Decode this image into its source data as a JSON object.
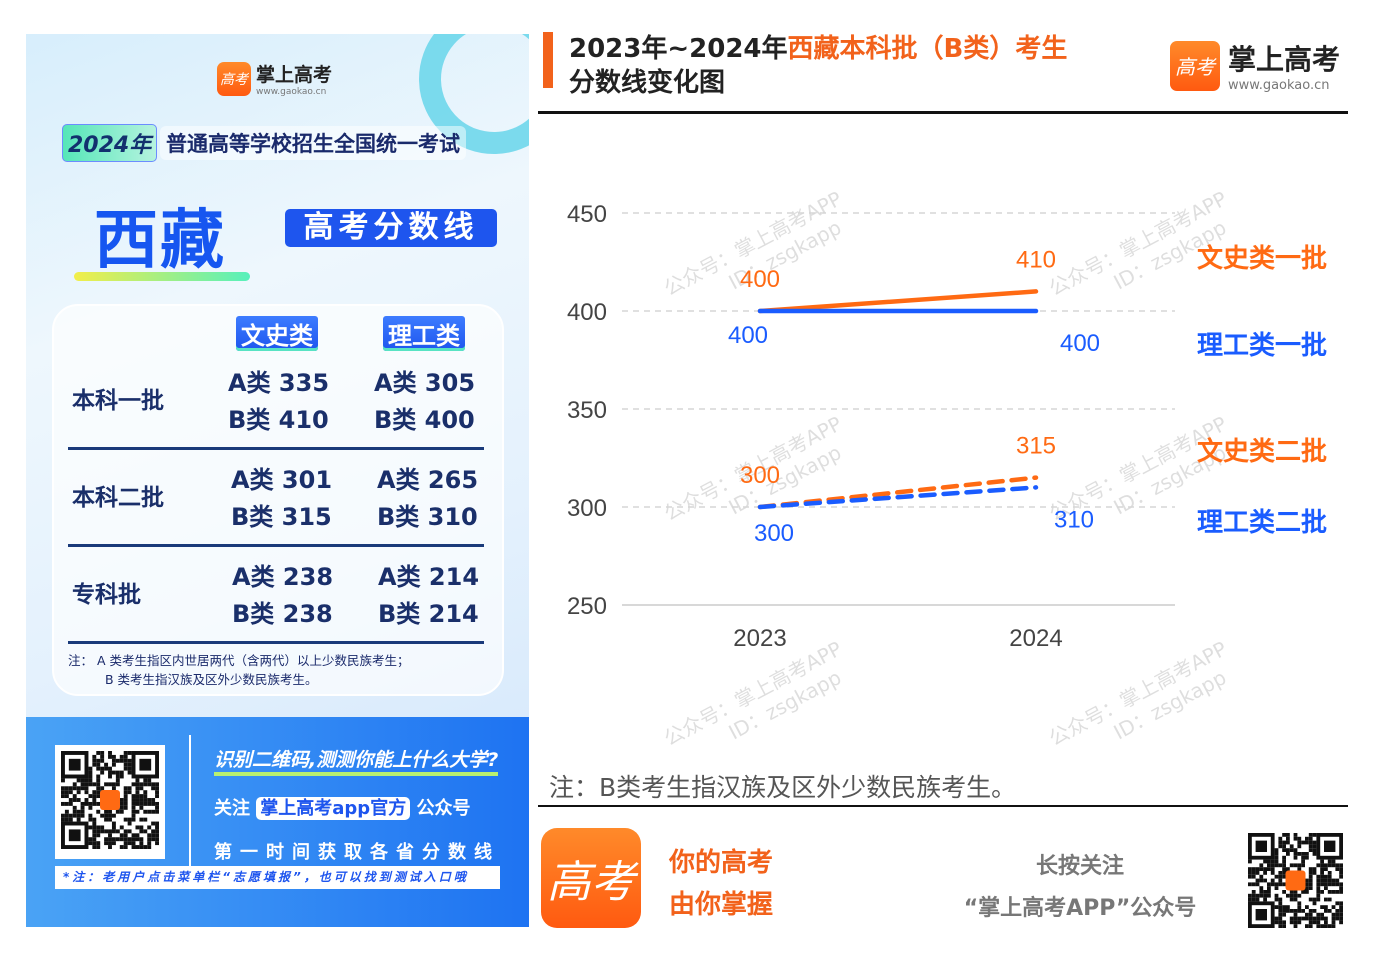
{
  "left": {
    "brand": "掌上高考",
    "url": "www.gaokao.cn",
    "logo_text": "高考",
    "year_tag": "2024年",
    "exam": "普通高等学校招生全国统一考试",
    "province": "西藏",
    "badge": "高考分数线",
    "columns": [
      "文史类",
      "理工类"
    ],
    "rows": [
      {
        "name": "本科一批",
        "wenshi": [
          "A类 335",
          "B类 410"
        ],
        "ligong": [
          "A类 305",
          "B类 400"
        ]
      },
      {
        "name": "本科二批",
        "wenshi": [
          "A类 301",
          "B类 315"
        ],
        "ligong": [
          "A类 265",
          "B类 310"
        ]
      },
      {
        "name": "专科批",
        "wenshi": [
          "A类 238",
          "B类 238"
        ],
        "ligong": [
          "A类 214",
          "B类 214"
        ]
      }
    ],
    "note_line1": "注： A 类考生指区内世居两代（含两代）以上少数民族考生；",
    "note_line2": "B 类考生指汉族及区外少数民族考生。",
    "promo": {
      "line1": "识别二维码,测测你能上什么大学?",
      "follow_prefix": "关注",
      "follow_name": "掌上高考app官方",
      "follow_suffix": "公众号",
      "line3": "第一时间获取各省分数线",
      "tip": "*注：老用户点击菜单栏“志愿填报”，也可以找到测试入口哦"
    }
  },
  "right": {
    "title_black": "2023年~2024年",
    "title_orange": "西藏本科批（B类）考生",
    "title_line2": "分数线变化图",
    "brand": "掌上高考",
    "url": "www.gaokao.cn",
    "logo_text": "高考",
    "watermark_line1": "公众号：掌上高考APP",
    "watermark_line2": "ID：zsgkapp",
    "note": "注：B类考生指汉族及区外少数民族考生。",
    "slogan1": "你的高考",
    "slogan2": "由你掌握",
    "follow1": "长按关注",
    "follow2": "“掌上高考APP”公众号"
  },
  "chart_data": {
    "type": "line",
    "title": "2023年~2024年西藏本科批（B类）考生分数线变化图",
    "x": [
      "2023",
      "2024"
    ],
    "ylim": [
      250,
      450
    ],
    "yticks": [
      "250",
      "300",
      "350",
      "400",
      "450"
    ],
    "grid": true,
    "legend": "right",
    "series": [
      {
        "name": "文史类一批",
        "values": [
          400,
          410
        ],
        "labels": [
          "400",
          "410"
        ],
        "color": "#ff6a13",
        "dashed": false
      },
      {
        "name": "理工类一批",
        "values": [
          400,
          400
        ],
        "labels": [
          "400",
          "400"
        ],
        "color": "#1a5cff",
        "dashed": false
      },
      {
        "name": "文史类二批",
        "values": [
          300,
          315
        ],
        "labels": [
          "300",
          "315"
        ],
        "color": "#ff6a13",
        "dashed": true
      },
      {
        "name": "理工类二批",
        "values": [
          300,
          310
        ],
        "labels": [
          "300",
          "310"
        ],
        "color": "#1a5cff",
        "dashed": true
      }
    ]
  }
}
